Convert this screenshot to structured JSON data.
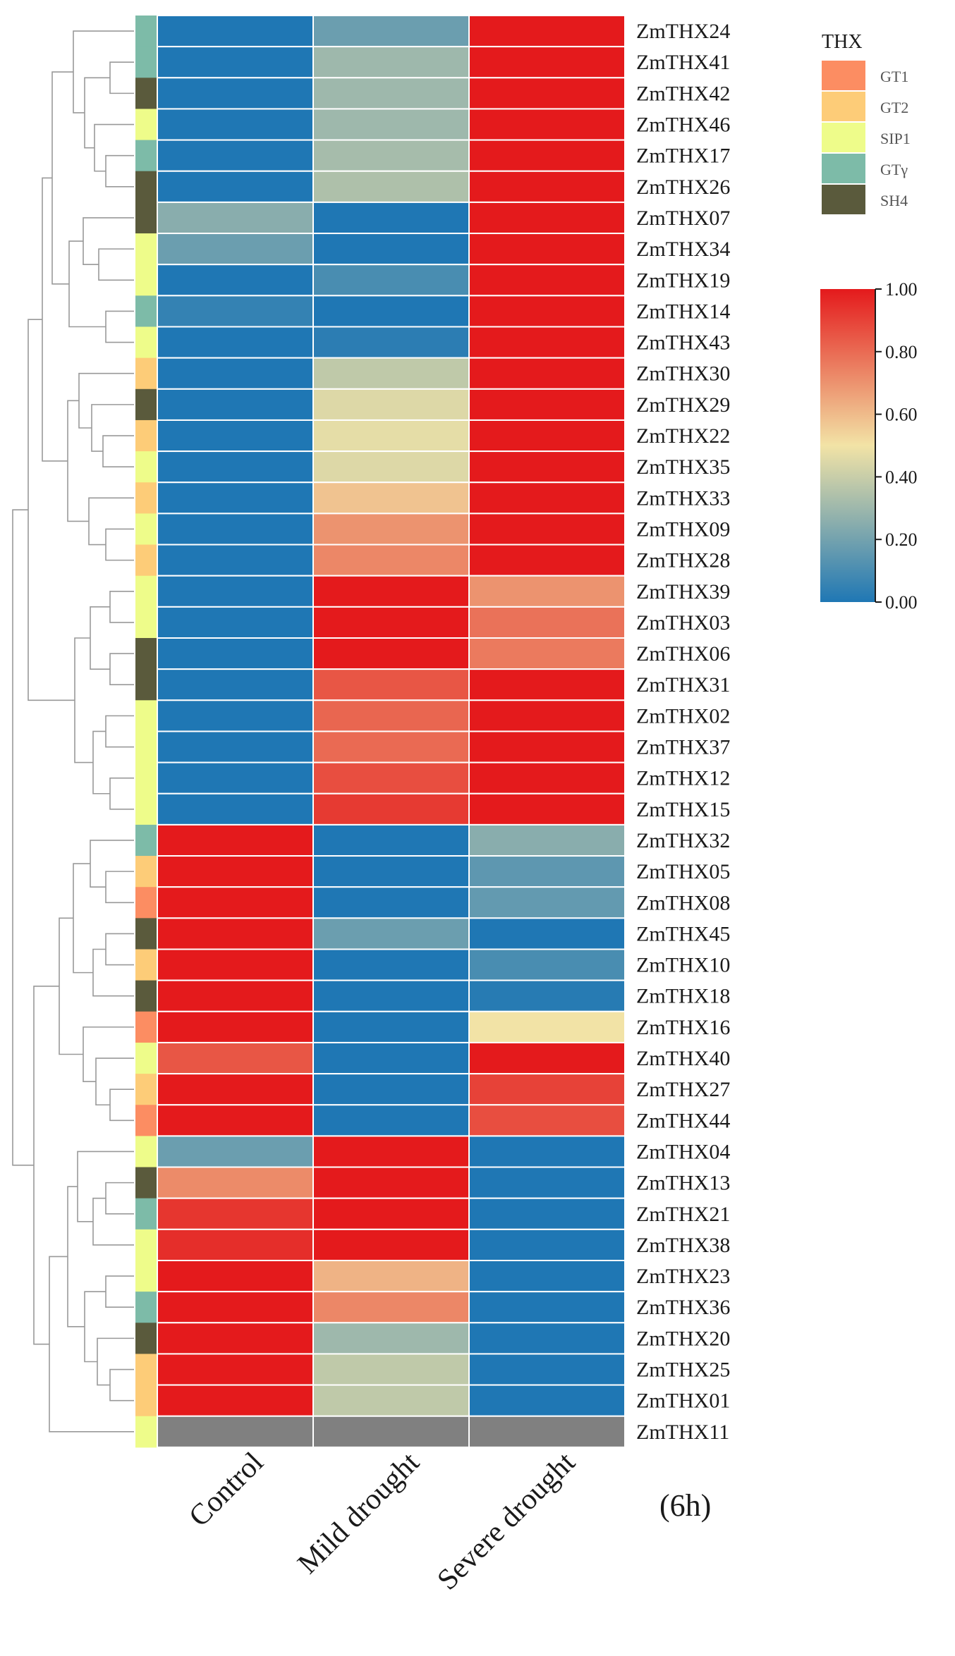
{
  "chart_data": {
    "type": "heatmap",
    "title": "",
    "time_note": "(6h)",
    "columns": [
      "Control",
      "Mild drought",
      "Severe drought"
    ],
    "rows": [
      {
        "gene": "ZmTHX24",
        "group": "GTγ",
        "values": [
          0.0,
          0.18,
          1.0
        ]
      },
      {
        "gene": "ZmTHX41",
        "group": "GTγ",
        "values": [
          0.0,
          0.3,
          1.0
        ]
      },
      {
        "gene": "ZmTHX42",
        "group": "SH4",
        "values": [
          0.0,
          0.3,
          1.0
        ]
      },
      {
        "gene": "ZmTHX46",
        "group": "SIP1",
        "values": [
          0.0,
          0.3,
          1.0
        ]
      },
      {
        "gene": "ZmTHX17",
        "group": "GTγ",
        "values": [
          0.0,
          0.32,
          1.0
        ]
      },
      {
        "gene": "ZmTHX26",
        "group": "SH4",
        "values": [
          0.0,
          0.34,
          1.0
        ]
      },
      {
        "gene": "ZmTHX07",
        "group": "SH4",
        "values": [
          0.25,
          0.0,
          1.0
        ]
      },
      {
        "gene": "ZmTHX34",
        "group": "SIP1",
        "values": [
          0.18,
          0.0,
          1.0
        ]
      },
      {
        "gene": "ZmTHX19",
        "group": "SIP1",
        "values": [
          0.0,
          0.1,
          1.0
        ]
      },
      {
        "gene": "ZmTHX14",
        "group": "GTγ",
        "values": [
          0.05,
          0.0,
          1.0
        ]
      },
      {
        "gene": "ZmTHX43",
        "group": "SIP1",
        "values": [
          0.0,
          0.03,
          1.0
        ]
      },
      {
        "gene": "ZmTHX30",
        "group": "GT2",
        "values": [
          0.0,
          0.38,
          1.0
        ]
      },
      {
        "gene": "ZmTHX29",
        "group": "SH4",
        "values": [
          0.0,
          0.45,
          1.0
        ]
      },
      {
        "gene": "ZmTHX22",
        "group": "GT2",
        "values": [
          0.0,
          0.47,
          1.0
        ]
      },
      {
        "gene": "ZmTHX35",
        "group": "SIP1",
        "values": [
          0.0,
          0.45,
          1.0
        ]
      },
      {
        "gene": "ZmTHX33",
        "group": "GT2",
        "values": [
          0.0,
          0.58,
          1.0
        ]
      },
      {
        "gene": "ZmTHX09",
        "group": "SIP1",
        "values": [
          0.0,
          0.7,
          1.0
        ]
      },
      {
        "gene": "ZmTHX28",
        "group": "GT2",
        "values": [
          0.0,
          0.73,
          1.0
        ]
      },
      {
        "gene": "ZmTHX39",
        "group": "SIP1",
        "values": [
          0.0,
          1.0,
          0.7
        ]
      },
      {
        "gene": "ZmTHX03",
        "group": "SIP1",
        "values": [
          0.0,
          1.0,
          0.78
        ]
      },
      {
        "gene": "ZmTHX06",
        "group": "SH4",
        "values": [
          0.0,
          1.0,
          0.76
        ]
      },
      {
        "gene": "ZmTHX31",
        "group": "SH4",
        "values": [
          0.0,
          0.85,
          1.0
        ]
      },
      {
        "gene": "ZmTHX02",
        "group": "SIP1",
        "values": [
          0.0,
          0.81,
          1.0
        ]
      },
      {
        "gene": "ZmTHX37",
        "group": "SIP1",
        "values": [
          0.0,
          0.8,
          1.0
        ]
      },
      {
        "gene": "ZmTHX12",
        "group": "SIP1",
        "values": [
          0.0,
          0.87,
          1.0
        ]
      },
      {
        "gene": "ZmTHX15",
        "group": "SIP1",
        "values": [
          0.0,
          0.92,
          1.0
        ]
      },
      {
        "gene": "ZmTHX32",
        "group": "GTγ",
        "values": [
          1.0,
          0.0,
          0.25
        ]
      },
      {
        "gene": "ZmTHX05",
        "group": "GT2",
        "values": [
          1.0,
          0.0,
          0.15
        ]
      },
      {
        "gene": "ZmTHX08",
        "group": "GT1",
        "values": [
          1.0,
          0.0,
          0.16
        ]
      },
      {
        "gene": "ZmTHX45",
        "group": "SH4",
        "values": [
          1.0,
          0.18,
          0.0
        ]
      },
      {
        "gene": "ZmTHX10",
        "group": "GT2",
        "values": [
          1.0,
          0.0,
          0.1
        ]
      },
      {
        "gene": "ZmTHX18",
        "group": "SH4",
        "values": [
          1.0,
          0.0,
          0.02
        ]
      },
      {
        "gene": "ZmTHX16",
        "group": "GT1",
        "values": [
          1.0,
          0.0,
          0.5
        ]
      },
      {
        "gene": "ZmTHX40",
        "group": "SIP1",
        "values": [
          0.85,
          0.0,
          1.0
        ]
      },
      {
        "gene": "ZmTHX27",
        "group": "GT2",
        "values": [
          1.0,
          0.0,
          0.9
        ]
      },
      {
        "gene": "ZmTHX44",
        "group": "GT1",
        "values": [
          1.0,
          0.0,
          0.87
        ]
      },
      {
        "gene": "ZmTHX04",
        "group": "SIP1",
        "values": [
          0.18,
          1.0,
          0.0
        ]
      },
      {
        "gene": "ZmTHX13",
        "group": "SH4",
        "values": [
          0.72,
          1.0,
          0.0
        ]
      },
      {
        "gene": "ZmTHX21",
        "group": "GTγ",
        "values": [
          0.93,
          1.0,
          0.0
        ]
      },
      {
        "gene": "ZmTHX38",
        "group": "SIP1",
        "values": [
          0.95,
          1.0,
          0.0
        ]
      },
      {
        "gene": "ZmTHX23",
        "group": "SIP1",
        "values": [
          1.0,
          0.62,
          0.0
        ]
      },
      {
        "gene": "ZmTHX36",
        "group": "GTγ",
        "values": [
          1.0,
          0.73,
          0.0
        ]
      },
      {
        "gene": "ZmTHX20",
        "group": "SH4",
        "values": [
          1.0,
          0.3,
          0.0
        ]
      },
      {
        "gene": "ZmTHX25",
        "group": "GT2",
        "values": [
          1.0,
          0.38,
          0.0
        ]
      },
      {
        "gene": "ZmTHX01",
        "group": "GT2",
        "values": [
          1.0,
          0.38,
          0.0
        ]
      },
      {
        "gene": "ZmTHX11",
        "group": "SIP1",
        "values": [
          null,
          null,
          null
        ]
      }
    ],
    "legend": {
      "title": "THX",
      "groups": [
        {
          "name": "GT1",
          "color": "#fc8d62"
        },
        {
          "name": "GT2",
          "color": "#fdcc78"
        },
        {
          "name": "SIP1",
          "color": "#eefc8a"
        },
        {
          "name": "GTγ",
          "color": "#7dbba8"
        },
        {
          "name": "SH4",
          "color": "#5a5a3c"
        }
      ]
    },
    "colorbar": {
      "range": [
        0.0,
        1.0
      ],
      "ticks": [
        "0.00",
        "0.20",
        "0.40",
        "0.60",
        "0.80",
        "1.00"
      ],
      "colors": {
        "low": "#1f77b4",
        "mid": "#f2e3a6",
        "high": "#e41a1c",
        "missing": "#808080"
      }
    },
    "dendrogram_color": "#999999"
  }
}
